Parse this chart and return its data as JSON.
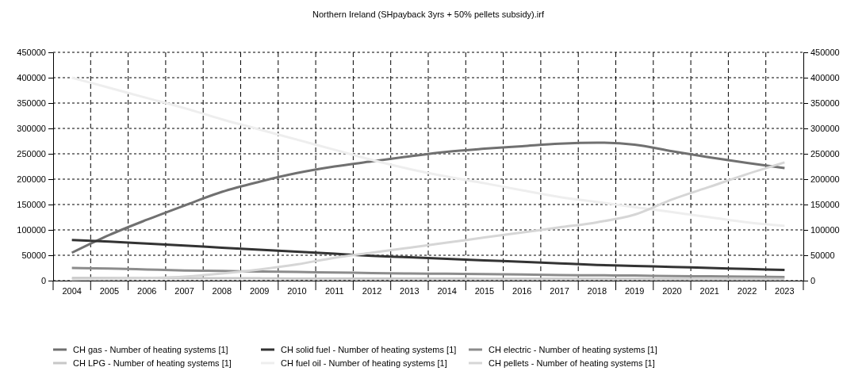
{
  "chart_data": {
    "type": "line",
    "title": "Northern Ireland (SHpayback 3yrs + 50% pellets subsidy).irf",
    "categories": [
      "2004",
      "2005",
      "2006",
      "2007",
      "2008",
      "2009",
      "2010",
      "2011",
      "2012",
      "2013",
      "2014",
      "2015",
      "2016",
      "2017",
      "2018",
      "2019",
      "2020",
      "2021",
      "2022",
      "2023"
    ],
    "series": [
      {
        "name": "CH gas - Number of heating systems [1]",
        "color": "#707070",
        "values": [
          55000,
          90000,
          120000,
          148000,
          175000,
          195000,
          212000,
          225000,
          235000,
          245000,
          254000,
          260000,
          265000,
          270000,
          272000,
          268000,
          255000,
          243000,
          232000,
          222000
        ]
      },
      {
        "name": "CH solid fuel - Number of heating systems [1]",
        "color": "#333333",
        "values": [
          80000,
          77000,
          73000,
          69000,
          65000,
          61000,
          57000,
          53000,
          49000,
          46000,
          43000,
          40000,
          37000,
          34000,
          31000,
          29000,
          27000,
          25000,
          23000,
          21000
        ]
      },
      {
        "name": "CH electric - Number of heating systems [1]",
        "color": "#8c8c8c",
        "values": [
          25000,
          24000,
          22000,
          20000,
          19000,
          18000,
          17000,
          16000,
          15000,
          14000,
          13500,
          13000,
          12000,
          11000,
          10500,
          10000,
          9000,
          8500,
          8000,
          7000
        ]
      },
      {
        "name": "CH LPG - Number of heating systems [1]",
        "color": "#c8c8c8",
        "values": [
          5000,
          5000,
          5000,
          4500,
          4500,
          4500,
          4000,
          4000,
          4000,
          4000,
          4000,
          3500,
          3500,
          3500,
          3500,
          3500,
          3000,
          3000,
          3000,
          3000
        ]
      },
      {
        "name": "CH fuel oil - Number of heating systems [1]",
        "color": "#eeeeee",
        "values": [
          400000,
          380000,
          360000,
          340000,
          318000,
          298000,
          278000,
          258000,
          238000,
          220000,
          205000,
          192000,
          178000,
          165000,
          155000,
          145000,
          135000,
          125000,
          115000,
          108000
        ]
      },
      {
        "name": "CH pellets - Number of heating systems [1]",
        "color": "#d6d6d6",
        "values": [
          2000,
          3000,
          5000,
          8000,
          14000,
          22000,
          32000,
          45000,
          55000,
          65000,
          75000,
          85000,
          95000,
          105000,
          115000,
          130000,
          160000,
          185000,
          210000,
          233000
        ]
      }
    ],
    "ylim": [
      0,
      450000
    ],
    "yticks": [
      0,
      50000,
      100000,
      150000,
      200000,
      250000,
      300000,
      350000,
      400000,
      450000
    ],
    "y2lim": [
      0,
      450000
    ],
    "y2ticks": [
      0,
      50000,
      100000,
      150000,
      200000,
      250000,
      300000,
      350000,
      400000,
      450000
    ],
    "grid": true,
    "legend": "bottom",
    "marker": "none",
    "line_style": "solid"
  }
}
